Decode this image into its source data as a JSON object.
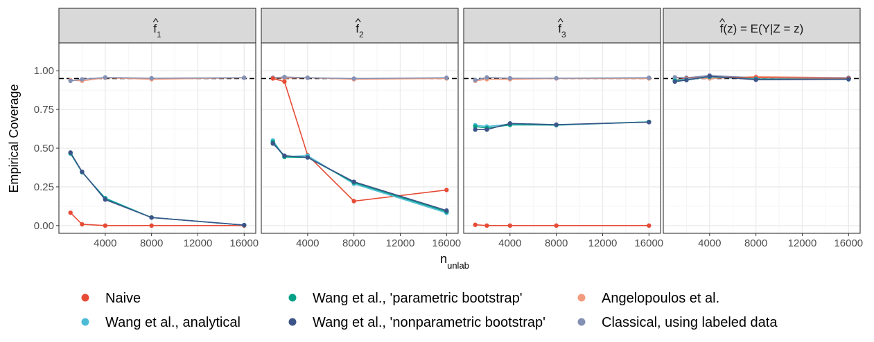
{
  "chart_data": {
    "type": "line",
    "ylabel": "Empirical Coverage",
    "xlabel": {
      "main": "n",
      "subscript": "unlab"
    },
    "xlim": [
      0,
      17000
    ],
    "ylim": [
      -0.05,
      1.18
    ],
    "x_ticks": [
      4000,
      8000,
      12000,
      16000
    ],
    "x_tick_labels": [
      "4000",
      "8000",
      "12000",
      "16000"
    ],
    "y_ticks": [
      0,
      0.25,
      0.5,
      0.75,
      1.0
    ],
    "y_tick_labels": [
      "0.00",
      "0.25",
      "0.50",
      "0.75",
      "1.00"
    ],
    "reference_line": {
      "y": 0.95,
      "style": "dashed",
      "color": "#000000"
    },
    "grid": true,
    "legend_position": "bottom",
    "series_styles": [
      {
        "key": "naive",
        "name": "Naive",
        "color": "#E64B35"
      },
      {
        "key": "analytical",
        "name": "Wang et al., analytical",
        "color": "#4DBBD5"
      },
      {
        "key": "param_boot",
        "name": "Wang et al., 'parametric bootstrap'",
        "color": "#00A087"
      },
      {
        "key": "nonparam_boot",
        "name": "Wang et al., 'nonparametric bootstrap'",
        "color": "#3C5488"
      },
      {
        "key": "angelopoulos",
        "name": "Angelopoulos et al.",
        "color": "#F39B7F"
      },
      {
        "key": "classical",
        "name": "Classical, using labeled data",
        "color": "#8491B4"
      }
    ],
    "x": [
      1000,
      2000,
      4000,
      8000,
      16000
    ],
    "panels": [
      {
        "title": {
          "base": "f",
          "sub": "1",
          "rest": ""
        },
        "series": {
          "naive": [
            0.083,
            0.008,
            0.0,
            0.0,
            0.0
          ],
          "analytical": [
            0.465,
            0.345,
            0.178,
            0.052,
            0.003
          ],
          "param_boot": [
            0.468,
            0.345,
            0.175,
            0.052,
            0.003
          ],
          "nonparam_boot": [
            0.472,
            0.348,
            0.168,
            0.052,
            0.003
          ],
          "angelopoulos": [
            0.94,
            0.935,
            0.955,
            0.945,
            0.955
          ],
          "classical": [
            0.935,
            0.945,
            0.957,
            0.952,
            0.955
          ]
        }
      },
      {
        "title": {
          "base": "f",
          "sub": "2",
          "rest": ""
        },
        "series": {
          "naive": [
            0.95,
            0.93,
            0.455,
            0.158,
            0.23
          ],
          "analytical": [
            0.55,
            0.445,
            0.452,
            0.27,
            0.082
          ],
          "param_boot": [
            0.54,
            0.443,
            0.44,
            0.278,
            0.09
          ],
          "nonparam_boot": [
            0.53,
            0.452,
            0.44,
            0.283,
            0.097
          ],
          "angelopoulos": [
            0.955,
            0.952,
            0.955,
            0.945,
            0.95
          ],
          "classical": [
            0.955,
            0.96,
            0.955,
            0.95,
            0.955
          ]
        }
      },
      {
        "title": {
          "base": "f",
          "sub": "3",
          "rest": ""
        },
        "series": {
          "naive": [
            0.005,
            0.0,
            0.0,
            0.0,
            0.0
          ],
          "analytical": [
            0.648,
            0.64,
            0.655,
            0.648,
            0.67
          ],
          "param_boot": [
            0.64,
            0.63,
            0.65,
            0.65,
            0.67
          ],
          "nonparam_boot": [
            0.62,
            0.62,
            0.66,
            0.652,
            0.668
          ],
          "angelopoulos": [
            0.935,
            0.945,
            0.945,
            0.95,
            0.95
          ],
          "classical": [
            0.94,
            0.957,
            0.952,
            0.952,
            0.955
          ]
        }
      },
      {
        "title": {
          "base": "f",
          "sub": "",
          "rest": "(z) = E(Y|Z = z)"
        },
        "series": {
          "naive": [
            0.94,
            0.95,
            0.96,
            0.955,
            0.95
          ],
          "analytical": [
            0.94,
            0.945,
            0.96,
            0.948,
            0.945
          ],
          "param_boot": [
            0.935,
            0.94,
            0.962,
            0.945,
            0.945
          ],
          "nonparam_boot": [
            0.93,
            0.94,
            0.965,
            0.942,
            0.945
          ],
          "angelopoulos": [
            0.955,
            0.955,
            0.95,
            0.962,
            0.955
          ],
          "classical": [
            0.958,
            0.955,
            0.97,
            0.955,
            0.955
          ]
        }
      }
    ]
  }
}
